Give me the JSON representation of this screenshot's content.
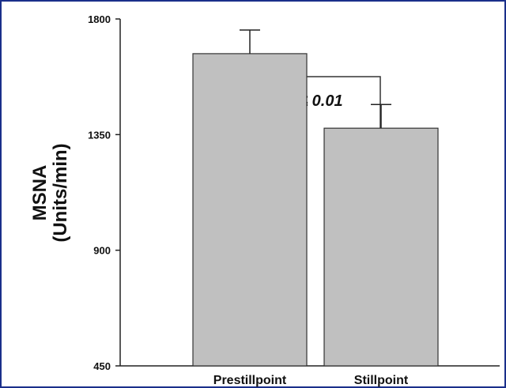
{
  "chart_data": {
    "type": "bar",
    "categories": [
      "Prestillpoint",
      "Stillpoint"
    ],
    "values": [
      1665,
      1375
    ],
    "errors": [
      92,
      92
    ],
    "ylim": [
      450,
      1800
    ],
    "yticks": [
      "450",
      "900",
      "1350",
      "1800"
    ],
    "ylabel_line1": "MSNA",
    "ylabel_line2": "(Units/min)",
    "annotation": "p ≤ 0.01",
    "bar_color": "#c0c0c0",
    "grid": false
  }
}
